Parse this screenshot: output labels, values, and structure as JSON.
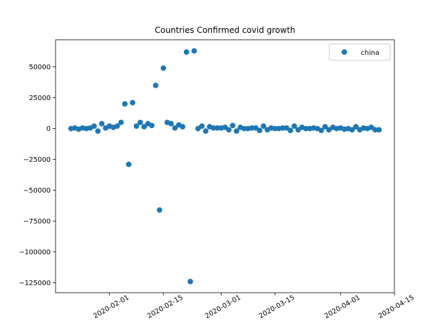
{
  "chart_data": {
    "type": "scatter",
    "title": "Countries Confirmed covid growth",
    "x": [
      "2020-01-22",
      "2020-01-23",
      "2020-01-24",
      "2020-01-25",
      "2020-01-26",
      "2020-01-27",
      "2020-01-28",
      "2020-01-29",
      "2020-01-30",
      "2020-01-31",
      "2020-02-01",
      "2020-02-02",
      "2020-02-03",
      "2020-02-04",
      "2020-02-05",
      "2020-02-06",
      "2020-02-07",
      "2020-02-08",
      "2020-02-09",
      "2020-02-10",
      "2020-02-11",
      "2020-02-12",
      "2020-02-13",
      "2020-02-14",
      "2020-02-15",
      "2020-02-16",
      "2020-02-17",
      "2020-02-18",
      "2020-02-19",
      "2020-02-20",
      "2020-02-21",
      "2020-02-22",
      "2020-02-23",
      "2020-02-24",
      "2020-02-25",
      "2020-02-26",
      "2020-02-27",
      "2020-02-28",
      "2020-02-29",
      "2020-03-01",
      "2020-03-02",
      "2020-03-03",
      "2020-03-04",
      "2020-03-05",
      "2020-03-06",
      "2020-03-07",
      "2020-03-08",
      "2020-03-09",
      "2020-03-10",
      "2020-03-11",
      "2020-03-12",
      "2020-03-13",
      "2020-03-14",
      "2020-03-15",
      "2020-03-16",
      "2020-03-17",
      "2020-03-18",
      "2020-03-19",
      "2020-03-20",
      "2020-03-21",
      "2020-03-22",
      "2020-03-23",
      "2020-03-24",
      "2020-03-25",
      "2020-03-26",
      "2020-03-27",
      "2020-03-28",
      "2020-03-29",
      "2020-03-30",
      "2020-03-31",
      "2020-04-01",
      "2020-04-02",
      "2020-04-03",
      "2020-04-04",
      "2020-04-05",
      "2020-04-06",
      "2020-04-07",
      "2020-04-08",
      "2020-04-09",
      "2020-04-10",
      "2020-04-11"
    ],
    "series": [
      {
        "name": "china",
        "color": "#1f77b4",
        "values": [
          0,
          500,
          -500,
          500,
          0,
          500,
          2000,
          -2000,
          4000,
          500,
          2000,
          1000,
          2000,
          5000,
          20000,
          -29000,
          21000,
          2000,
          5000,
          1500,
          4000,
          2500,
          35000,
          -66000,
          49000,
          5000,
          4000,
          500,
          3000,
          1500,
          62000,
          -124000,
          63000,
          0,
          2000,
          -2000,
          1500,
          500,
          500,
          500,
          1000,
          -1000,
          2500,
          -2000,
          1000,
          0,
          0,
          500,
          500,
          -1500,
          2000,
          -1000,
          500,
          0,
          0,
          500,
          500,
          -1500,
          2000,
          -1000,
          1000,
          0,
          0,
          500,
          0,
          -1500,
          1500,
          -1000,
          1000,
          0,
          500,
          -500,
          0,
          -1000,
          1500,
          -1000,
          500,
          0,
          1000,
          -1000,
          -1000
        ]
      }
    ],
    "xlim": [
      "2020-01-18",
      "2020-04-15"
    ],
    "xticks": [
      "2020-02-01",
      "2020-02-15",
      "2020-03-01",
      "2020-03-15",
      "2020-04-01",
      "2020-04-15"
    ],
    "ylim": [
      -133000,
      72000
    ],
    "yticks": [
      {
        "value": -125000,
        "label": "−125000"
      },
      {
        "value": -100000,
        "label": "−100000"
      },
      {
        "value": -75000,
        "label": "−75000"
      },
      {
        "value": -50000,
        "label": "−50000"
      },
      {
        "value": -25000,
        "label": "−25000"
      },
      0,
      25000,
      50000
    ],
    "legend": "upper right"
  }
}
